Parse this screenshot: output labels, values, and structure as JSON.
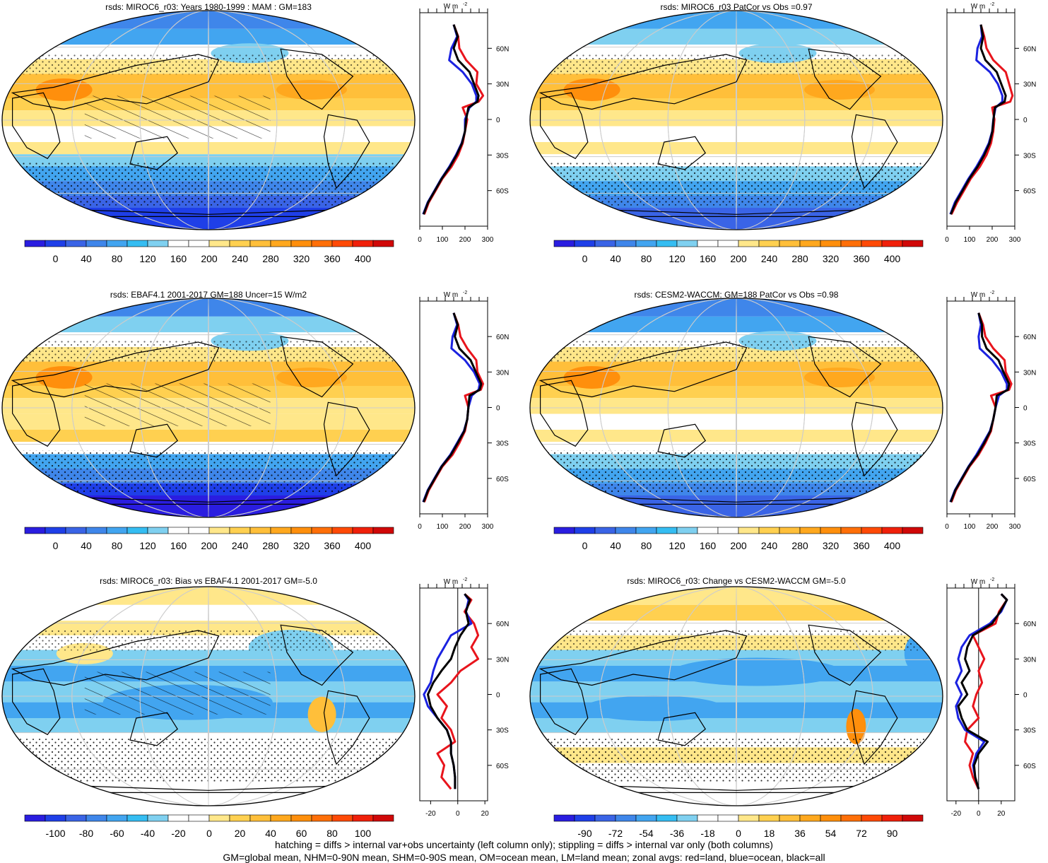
{
  "panels": [
    {
      "title": "rsds: MIROC6_r03: Years 1980-1999 : MAM : GM=183",
      "colorbar_labels": [
        "0",
        "40",
        "80",
        "120",
        "160",
        "200",
        "240",
        "280",
        "320",
        "360",
        "400"
      ],
      "colorbar_colors": [
        "#2a1de0",
        "#1f3fe8",
        "#3a64e6",
        "#3f86ea",
        "#42a5f0",
        "#35bdf2",
        "#7fd0f0",
        "#ffffff",
        "#ffffff",
        "#ffe78a",
        "#ffd050",
        "#ffbf3a",
        "#ffa81e",
        "#ff8f0c",
        "#ff6f08",
        "#ff4a06",
        "#f0200a",
        "#d00808"
      ],
      "profile_ticks": [
        "0",
        "100",
        "200",
        "300"
      ],
      "profile_range": [
        0,
        300
      ],
      "zonal": {
        "lat": [
          80,
          70,
          60,
          50,
          40,
          30,
          20,
          15,
          10,
          0,
          -10,
          -20,
          -30,
          -40,
          -50,
          -60,
          -70,
          -80
        ],
        "land": [
          150,
          170,
          175,
          205,
          255,
          250,
          280,
          260,
          190,
          210,
          200,
          190,
          170,
          140,
          100,
          70,
          40,
          20
        ],
        "ocean": [
          150,
          165,
          140,
          130,
          190,
          230,
          250,
          250,
          220,
          200,
          200,
          185,
          160,
          130,
          95,
          65,
          35,
          15
        ],
        "all": [
          150,
          168,
          150,
          170,
          220,
          240,
          260,
          255,
          215,
          205,
          200,
          187,
          163,
          133,
          97,
          67,
          37,
          17
        ]
      },
      "map": "clim_model"
    },
    {
      "title": "rsds: MIROC6_r03 PatCor vs Obs =0.97",
      "colorbar_labels": [
        "0",
        "40",
        "80",
        "120",
        "160",
        "200",
        "240",
        "280",
        "320",
        "360",
        "400"
      ],
      "colorbar_colors": [
        "#2a1de0",
        "#1f3fe8",
        "#3a64e6",
        "#3f86ea",
        "#42a5f0",
        "#35bdf2",
        "#7fd0f0",
        "#ffffff",
        "#ffffff",
        "#ffe78a",
        "#ffd050",
        "#ffbf3a",
        "#ffa81e",
        "#ff8f0c",
        "#ff6f08",
        "#ff4a06",
        "#f0200a",
        "#d00808"
      ],
      "profile_ticks": [
        "0",
        "100",
        "200",
        "300"
      ],
      "profile_range": [
        0,
        300
      ],
      "zonal": {
        "lat": [
          80,
          70,
          60,
          50,
          40,
          30,
          20,
          15,
          10,
          0,
          -10,
          -20,
          -30,
          -40,
          -50,
          -60,
          -70,
          -80
        ],
        "land": [
          150,
          165,
          175,
          205,
          260,
          275,
          290,
          280,
          200,
          210,
          205,
          195,
          175,
          145,
          105,
          75,
          45,
          20
        ],
        "ocean": [
          150,
          155,
          135,
          130,
          190,
          225,
          245,
          245,
          215,
          205,
          200,
          185,
          160,
          130,
          95,
          65,
          35,
          15
        ],
        "all": [
          150,
          160,
          150,
          170,
          220,
          240,
          260,
          255,
          212,
          206,
          201,
          188,
          165,
          135,
          99,
          69,
          39,
          17
        ]
      },
      "map": "clim_model2"
    },
    {
      "title": "rsds: EBAF4.1 2001-2017 GM=188 Uncer=15 W/m2",
      "colorbar_labels": [
        "0",
        "40",
        "80",
        "120",
        "160",
        "200",
        "240",
        "280",
        "320",
        "360",
        "400"
      ],
      "colorbar_colors": [
        "#2a1de0",
        "#1f3fe8",
        "#3a64e6",
        "#3f86ea",
        "#42a5f0",
        "#35bdf2",
        "#7fd0f0",
        "#ffffff",
        "#ffffff",
        "#ffe78a",
        "#ffd050",
        "#ffbf3a",
        "#ffa81e",
        "#ff8f0c",
        "#ff6f08",
        "#ff4a06",
        "#f0200a",
        "#d00808"
      ],
      "profile_ticks": [
        "0",
        "100",
        "200",
        "300"
      ],
      "profile_range": [
        0,
        300
      ],
      "zonal": {
        "lat": [
          80,
          70,
          60,
          50,
          40,
          30,
          20,
          15,
          10,
          0,
          -10,
          -20,
          -30,
          -40,
          -50,
          -60,
          -70,
          -80
        ],
        "land": [
          150,
          170,
          180,
          210,
          250,
          255,
          280,
          270,
          200,
          215,
          210,
          200,
          175,
          145,
          100,
          70,
          40,
          20
        ],
        "ocean": [
          150,
          165,
          145,
          140,
          200,
          240,
          265,
          260,
          230,
          215,
          210,
          195,
          165,
          135,
          95,
          65,
          35,
          15
        ],
        "all": [
          150,
          168,
          155,
          175,
          225,
          248,
          272,
          265,
          220,
          215,
          210,
          197,
          168,
          138,
          97,
          67,
          37,
          17
        ]
      },
      "map": "clim_obs"
    },
    {
      "title": "rsds: CESM2-WACCM: GM=188 PatCor vs Obs =0.98",
      "colorbar_labels": [
        "0",
        "40",
        "80",
        "120",
        "160",
        "200",
        "240",
        "280",
        "320",
        "360",
        "400"
      ],
      "colorbar_colors": [
        "#2a1de0",
        "#1f3fe8",
        "#3a64e6",
        "#3f86ea",
        "#42a5f0",
        "#35bdf2",
        "#7fd0f0",
        "#ffffff",
        "#ffffff",
        "#ffe78a",
        "#ffd050",
        "#ffbf3a",
        "#ffa81e",
        "#ff8f0c",
        "#ff6f08",
        "#ff4a06",
        "#f0200a",
        "#d00808"
      ],
      "profile_ticks": [
        "0",
        "100",
        "200",
        "300"
      ],
      "profile_range": [
        0,
        300
      ],
      "zonal": {
        "lat": [
          80,
          70,
          60,
          50,
          40,
          30,
          20,
          15,
          10,
          0,
          -10,
          -20,
          -30,
          -40,
          -50,
          -60,
          -70,
          -80
        ],
        "land": [
          140,
          160,
          170,
          205,
          255,
          260,
          285,
          275,
          195,
          215,
          205,
          195,
          170,
          140,
          100,
          70,
          40,
          20
        ],
        "ocean": [
          140,
          150,
          140,
          145,
          200,
          240,
          265,
          265,
          230,
          215,
          205,
          190,
          160,
          130,
          95,
          65,
          35,
          15
        ],
        "all": [
          140,
          155,
          155,
          175,
          228,
          250,
          275,
          270,
          220,
          215,
          205,
          192,
          165,
          135,
          97,
          67,
          37,
          17
        ]
      },
      "map": "clim_cesm"
    },
    {
      "title": "rsds: MIROC6_r03: Bias vs EBAF4.1 2001-2017 GM=-5.0",
      "colorbar_labels": [
        "-100",
        "-80",
        "-60",
        "-40",
        "-20",
        "0",
        "20",
        "40",
        "60",
        "80",
        "100"
      ],
      "colorbar_colors": [
        "#2a1de0",
        "#1f3fe8",
        "#3a64e6",
        "#3f86ea",
        "#42a5f0",
        "#35bdf2",
        "#7fd0f0",
        "#ffffff",
        "#ffffff",
        "#ffe78a",
        "#ffd050",
        "#ffbf3a",
        "#ffa81e",
        "#ff8f0c",
        "#ff6f08",
        "#ff4a06",
        "#f0200a",
        "#d00808"
      ],
      "profile_ticks": [
        "-20",
        "0",
        "20"
      ],
      "profile_range": [
        -28,
        22
      ],
      "zonal": {
        "lat": [
          85,
          80,
          70,
          60,
          50,
          40,
          30,
          20,
          10,
          0,
          -10,
          -20,
          -30,
          -40,
          -50,
          -60,
          -70,
          -80
        ],
        "land": [
          5,
          10,
          5,
          12,
          15,
          10,
          15,
          2,
          -5,
          -15,
          -8,
          -12,
          -5,
          -2,
          -15,
          -10,
          -12,
          -5
        ],
        "ocean": [
          5,
          8,
          6,
          10,
          -5,
          -10,
          -15,
          -18,
          -20,
          -25,
          -22,
          -15,
          -8,
          -5,
          -5,
          -3,
          -2,
          -2
        ],
        "all": [
          5,
          9,
          6,
          8,
          2,
          -2,
          -5,
          -12,
          -18,
          -22,
          -20,
          -15,
          -8,
          -5,
          -5,
          -3,
          -2,
          -2
        ]
      },
      "map": "bias"
    },
    {
      "title": "rsds: MIROC6_r03: Change vs CESM2-WACCM GM=-5.0",
      "colorbar_labels": [
        "-90",
        "-72",
        "-54",
        "-36",
        "-18",
        "0",
        "18",
        "36",
        "54",
        "72",
        "90"
      ],
      "colorbar_colors": [
        "#2a1de0",
        "#1f3fe8",
        "#3a64e6",
        "#3f86ea",
        "#42a5f0",
        "#35bdf2",
        "#7fd0f0",
        "#ffffff",
        "#ffffff",
        "#ffe78a",
        "#ffd050",
        "#ffbf3a",
        "#ffa81e",
        "#ff8f0c",
        "#ff6f08",
        "#ff4a06",
        "#f0200a",
        "#d00808"
      ],
      "profile_ticks": [
        "-20",
        "0",
        "20"
      ],
      "profile_range": [
        -28,
        32
      ],
      "zonal": {
        "lat": [
          85,
          80,
          70,
          60,
          50,
          40,
          30,
          20,
          10,
          0,
          -10,
          -20,
          -30,
          -40,
          -50,
          -60,
          -70,
          -80
        ],
        "land": [
          20,
          25,
          18,
          15,
          -5,
          0,
          5,
          0,
          3,
          -2,
          -5,
          0,
          -10,
          -12,
          -5,
          -8,
          -5,
          0
        ],
        "ocean": [
          20,
          25,
          20,
          10,
          -8,
          -15,
          -18,
          -15,
          -20,
          -15,
          -20,
          -18,
          -12,
          5,
          -2,
          -5,
          -3,
          0
        ],
        "all": [
          20,
          25,
          19,
          12,
          -5,
          -10,
          -12,
          -8,
          -15,
          -10,
          -18,
          -15,
          -10,
          8,
          0,
          -4,
          -3,
          0
        ]
      },
      "map": "change"
    }
  ],
  "profile_units": "W m",
  "profile_units_exp": "-2",
  "lat_ticks": [
    "60N",
    "30N",
    "0",
    "30S",
    "60S"
  ],
  "footer": {
    "line1": "hatching = diffs > internal var+obs uncertainty (left column only); stippling = diffs > internal var only (both columns)",
    "line2": "GM=global mean, NHM=0-90N mean, SHM=0-90S mean, OM=ocean mean, LM=land mean; zonal avgs: red=land, blue=ocean, black=all"
  },
  "colors": {
    "land": "#e8141c",
    "ocean": "#1b22e0",
    "all": "#000000"
  }
}
